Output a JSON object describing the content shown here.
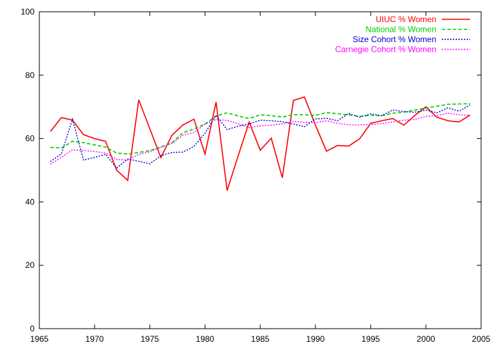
{
  "chart_data": {
    "type": "line",
    "title": "",
    "xlabel": "",
    "ylabel": "",
    "xlim": [
      1965,
      2005
    ],
    "ylim": [
      0,
      100
    ],
    "xticks": [
      1965,
      1970,
      1975,
      1980,
      1985,
      1990,
      1995,
      2000,
      2005
    ],
    "yticks": [
      0,
      20,
      40,
      60,
      80,
      100
    ],
    "grid": false,
    "legend_position": "top-right",
    "x": [
      1966,
      1967,
      1968,
      1969,
      1970,
      1971,
      1972,
      1973,
      1974,
      1975,
      1976,
      1977,
      1978,
      1979,
      1980,
      1981,
      1982,
      1983,
      1984,
      1985,
      1986,
      1987,
      1988,
      1989,
      1990,
      1991,
      1992,
      1993,
      1994,
      1995,
      1996,
      1997,
      1998,
      1999,
      2000,
      2001,
      2002,
      2003,
      2004
    ],
    "series": [
      {
        "name": "UIUC % Women",
        "color": "#ff0000",
        "dash": "solid",
        "values": [
          62.2,
          66.6,
          65.8,
          61.2,
          60.0,
          59.1,
          50.0,
          46.8,
          72.2,
          63.1,
          54.0,
          61.0,
          64.3,
          66.1,
          55.1,
          71.5,
          43.6,
          54.5,
          65.2,
          56.3,
          60.1,
          47.6,
          72.0,
          73.1,
          64.2,
          56.0,
          57.8,
          57.6,
          59.9,
          64.8,
          65.6,
          66.3,
          64.2,
          67.3,
          70.0,
          66.7,
          65.6,
          65.2,
          67.4
        ]
      },
      {
        "name": "National % Women",
        "color": "#00cc00",
        "dash": "dashed",
        "values": [
          57.2,
          57.0,
          59.1,
          58.7,
          58.0,
          57.3,
          55.4,
          55.1,
          55.6,
          56.2,
          57.3,
          58.6,
          61.8,
          63.0,
          64.6,
          67.1,
          68.1,
          67.1,
          66.3,
          67.5,
          67.2,
          66.8,
          67.5,
          67.5,
          67.3,
          68.2,
          67.8,
          67.5,
          67.0,
          67.3,
          67.2,
          68.0,
          68.3,
          69.0,
          69.6,
          70.2,
          70.8,
          70.9,
          71.0
        ]
      },
      {
        "name": "Size Cohort % Women",
        "color": "#0000cc",
        "dash": "dotted",
        "values": [
          52.7,
          55.2,
          66.1,
          53.2,
          54.0,
          55.0,
          50.7,
          53.5,
          52.8,
          52.0,
          54.6,
          55.6,
          55.7,
          57.5,
          61.7,
          67.3,
          62.8,
          63.9,
          64.6,
          65.8,
          65.6,
          65.3,
          64.6,
          63.7,
          66.2,
          66.4,
          65.6,
          67.9,
          66.7,
          67.8,
          67.2,
          69.0,
          68.5,
          68.3,
          69.0,
          68.1,
          69.7,
          68.6,
          70.6
        ]
      },
      {
        "name": "Carnegie Cohort % Women",
        "color": "#ff00ff",
        "dash": "dotted",
        "values": [
          51.9,
          54.1,
          56.4,
          56.2,
          55.9,
          55.4,
          53.4,
          53.2,
          55.0,
          55.8,
          57.2,
          58.5,
          61.0,
          61.9,
          64.5,
          66.0,
          65.7,
          64.7,
          63.4,
          64.0,
          64.2,
          64.6,
          65.4,
          65.1,
          65.0,
          65.6,
          64.8,
          64.3,
          64.3,
          64.4,
          64.7,
          65.2,
          65.8,
          66.0,
          67.0,
          67.2,
          68.0,
          67.5,
          67.3
        ]
      }
    ]
  }
}
